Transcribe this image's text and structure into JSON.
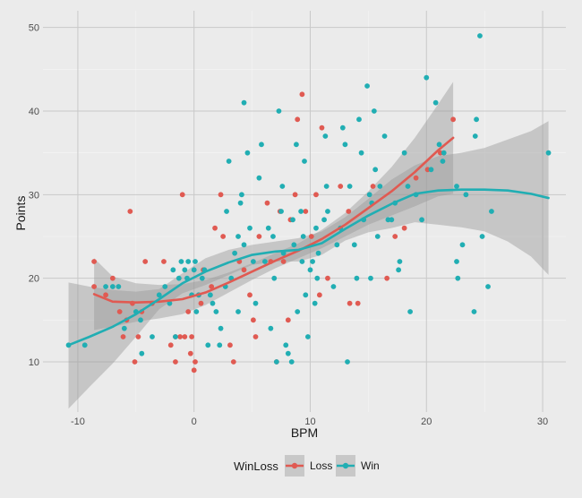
{
  "chart_data": {
    "type": "scatter",
    "title": "",
    "xlabel": "BPM",
    "ylabel": "Points",
    "xlim": [
      -13,
      32
    ],
    "ylim": [
      4,
      52
    ],
    "x_ticks": [
      -10,
      0,
      10,
      20,
      30
    ],
    "y_ticks": [
      10,
      20,
      30,
      40,
      50
    ],
    "grid": true,
    "legend": {
      "title": "WinLoss",
      "position": "bottom"
    },
    "series": [
      {
        "name": "Loss",
        "color": "#e05a52",
        "points": [
          [
            -8.6,
            22
          ],
          [
            -8.6,
            19
          ],
          [
            -7.6,
            18
          ],
          [
            -7,
            20
          ],
          [
            -6.4,
            16
          ],
          [
            -6.1,
            13
          ],
          [
            -5.8,
            15
          ],
          [
            -5.5,
            28
          ],
          [
            -5.3,
            17
          ],
          [
            -5.1,
            10
          ],
          [
            -4.8,
            13
          ],
          [
            -4.5,
            16
          ],
          [
            -4.2,
            22
          ],
          [
            -3.6,
            17
          ],
          [
            -2.6,
            22
          ],
          [
            -2,
            12
          ],
          [
            -1.6,
            13
          ],
          [
            -1.6,
            10
          ],
          [
            -1.2,
            13
          ],
          [
            -1,
            30
          ],
          [
            -0.8,
            13
          ],
          [
            -0.5,
            16
          ],
          [
            -0.3,
            11
          ],
          [
            -0.2,
            13
          ],
          [
            0,
            9
          ],
          [
            0.1,
            10
          ],
          [
            0.4,
            18
          ],
          [
            0.6,
            17
          ],
          [
            0.8,
            21
          ],
          [
            1.5,
            19
          ],
          [
            1.8,
            26
          ],
          [
            2.3,
            30
          ],
          [
            2.5,
            25
          ],
          [
            3.1,
            12
          ],
          [
            3.4,
            10
          ],
          [
            3.9,
            22
          ],
          [
            4.3,
            21
          ],
          [
            4.8,
            18
          ],
          [
            5.1,
            15
          ],
          [
            5.3,
            13
          ],
          [
            5.6,
            25
          ],
          [
            6.3,
            29
          ],
          [
            6.6,
            22
          ],
          [
            7.1,
            10
          ],
          [
            7.4,
            28
          ],
          [
            7.7,
            22
          ],
          [
            8.1,
            15
          ],
          [
            8.3,
            27
          ],
          [
            8.7,
            30
          ],
          [
            8.9,
            39
          ],
          [
            9.3,
            42
          ],
          [
            9.6,
            28
          ],
          [
            10.1,
            25
          ],
          [
            10.5,
            30
          ],
          [
            10.8,
            18
          ],
          [
            11,
            38
          ],
          [
            11.5,
            20
          ],
          [
            12.6,
            31
          ],
          [
            13.3,
            28
          ],
          [
            13.4,
            17
          ],
          [
            14.1,
            17
          ],
          [
            15.4,
            31
          ],
          [
            16.6,
            20
          ],
          [
            17.3,
            25
          ],
          [
            18.1,
            26
          ],
          [
            19.1,
            32
          ],
          [
            20.1,
            33
          ],
          [
            21.2,
            35
          ],
          [
            22.3,
            39
          ]
        ],
        "smooth": [
          [
            -8.6,
            18.1
          ],
          [
            -7,
            17.2
          ],
          [
            -5,
            17.1
          ],
          [
            -3,
            17.2
          ],
          [
            -1,
            17.5
          ],
          [
            1,
            18.3
          ],
          [
            3,
            19.5
          ],
          [
            5,
            20.8
          ],
          [
            7,
            22.1
          ],
          [
            9,
            23.3
          ],
          [
            11,
            24.7
          ],
          [
            13,
            26.4
          ],
          [
            15,
            28.4
          ],
          [
            17,
            30.4
          ],
          [
            19,
            32.7
          ],
          [
            21,
            35.3
          ],
          [
            22.3,
            36.8
          ]
        ],
        "band_upper": [
          [
            -8.6,
            22.4
          ],
          [
            -7,
            20.2
          ],
          [
            -5,
            19.4
          ],
          [
            -3,
            19.2
          ],
          [
            -1,
            19.3
          ],
          [
            1,
            19.8
          ],
          [
            3,
            20.7
          ],
          [
            5,
            21.8
          ],
          [
            7,
            23
          ],
          [
            9,
            24.2
          ],
          [
            11,
            25.8
          ],
          [
            13,
            27.8
          ],
          [
            15,
            30.4
          ],
          [
            17,
            33.3
          ],
          [
            19,
            36.8
          ],
          [
            21,
            40.8
          ],
          [
            22.3,
            43.5
          ]
        ],
        "band_lower": [
          [
            -8.6,
            13.8
          ],
          [
            -7,
            14.2
          ],
          [
            -5,
            14.8
          ],
          [
            -3,
            15.2
          ],
          [
            -1,
            15.7
          ],
          [
            1,
            16.8
          ],
          [
            3,
            18.3
          ],
          [
            5,
            19.8
          ],
          [
            7,
            21.2
          ],
          [
            9,
            22.4
          ],
          [
            11,
            23.6
          ],
          [
            13,
            25
          ],
          [
            15,
            26.4
          ],
          [
            17,
            27.5
          ],
          [
            19,
            28.6
          ],
          [
            21,
            29.8
          ],
          [
            22.3,
            30.1
          ]
        ]
      },
      {
        "name": "Win",
        "color": "#21aeb3",
        "points": [
          [
            -10.8,
            12
          ],
          [
            -9.4,
            12
          ],
          [
            -7.6,
            19
          ],
          [
            -7,
            19
          ],
          [
            -6.5,
            19
          ],
          [
            -6,
            14
          ],
          [
            -5,
            16
          ],
          [
            -4.6,
            15
          ],
          [
            -4.5,
            11
          ],
          [
            -3.6,
            13
          ],
          [
            -3,
            18
          ],
          [
            -2.5,
            19
          ],
          [
            -2.1,
            17
          ],
          [
            -1.8,
            21
          ],
          [
            -1.6,
            13
          ],
          [
            -1.3,
            20
          ],
          [
            -1.1,
            22
          ],
          [
            -0.8,
            21
          ],
          [
            -0.6,
            20
          ],
          [
            -0.5,
            22
          ],
          [
            -0.2,
            18
          ],
          [
            0,
            21
          ],
          [
            0.1,
            22
          ],
          [
            0.2,
            16
          ],
          [
            0.4,
            18
          ],
          [
            0.7,
            20
          ],
          [
            0.9,
            21
          ],
          [
            1.2,
            12
          ],
          [
            1.4,
            18
          ],
          [
            1.6,
            17
          ],
          [
            1.9,
            16
          ],
          [
            2.2,
            12
          ],
          [
            2.3,
            14
          ],
          [
            2.7,
            19
          ],
          [
            2.8,
            28
          ],
          [
            3,
            34
          ],
          [
            3.2,
            20
          ],
          [
            3.5,
            23
          ],
          [
            3.8,
            16
          ],
          [
            3.8,
            25
          ],
          [
            4,
            29
          ],
          [
            4.1,
            30
          ],
          [
            4.3,
            24
          ],
          [
            4.3,
            41
          ],
          [
            4.6,
            35
          ],
          [
            4.8,
            26
          ],
          [
            5.1,
            22
          ],
          [
            5.3,
            17
          ],
          [
            5.6,
            32
          ],
          [
            5.8,
            36
          ],
          [
            6.1,
            22
          ],
          [
            6.4,
            26
          ],
          [
            6.6,
            14
          ],
          [
            6.8,
            25
          ],
          [
            6.9,
            20
          ],
          [
            7.1,
            10
          ],
          [
            7.3,
            40
          ],
          [
            7.5,
            28
          ],
          [
            7.6,
            31
          ],
          [
            7.7,
            23
          ],
          [
            7.9,
            12
          ],
          [
            8.1,
            11
          ],
          [
            8.4,
            10
          ],
          [
            8.5,
            27
          ],
          [
            8.6,
            24
          ],
          [
            8.8,
            36
          ],
          [
            8.9,
            16
          ],
          [
            9.2,
            28
          ],
          [
            9.3,
            22
          ],
          [
            9.4,
            25
          ],
          [
            9.5,
            34
          ],
          [
            9.6,
            18
          ],
          [
            9.8,
            13
          ],
          [
            10,
            21
          ],
          [
            10.2,
            22
          ],
          [
            10.4,
            17
          ],
          [
            10.5,
            26
          ],
          [
            10.6,
            20
          ],
          [
            10.7,
            23
          ],
          [
            11.2,
            27
          ],
          [
            11.3,
            37
          ],
          [
            11.4,
            31
          ],
          [
            11.5,
            28
          ],
          [
            12,
            19
          ],
          [
            12.3,
            24
          ],
          [
            12.6,
            26
          ],
          [
            12.8,
            38
          ],
          [
            13,
            36
          ],
          [
            13.2,
            10
          ],
          [
            13.4,
            31
          ],
          [
            13.8,
            24
          ],
          [
            14,
            20
          ],
          [
            14.2,
            39
          ],
          [
            14.4,
            35
          ],
          [
            14.6,
            27
          ],
          [
            14.9,
            43
          ],
          [
            15.1,
            30
          ],
          [
            15.2,
            20
          ],
          [
            15.3,
            29
          ],
          [
            15.5,
            40
          ],
          [
            15.6,
            33
          ],
          [
            15.8,
            25
          ],
          [
            16,
            31
          ],
          [
            16.4,
            37
          ],
          [
            16.7,
            27
          ],
          [
            17,
            27
          ],
          [
            17.3,
            29
          ],
          [
            17.6,
            21
          ],
          [
            17.7,
            22
          ],
          [
            18.1,
            35
          ],
          [
            18.4,
            31
          ],
          [
            18.6,
            16
          ],
          [
            19.1,
            30
          ],
          [
            19.6,
            27
          ],
          [
            20,
            44
          ],
          [
            20.4,
            33
          ],
          [
            20.8,
            41
          ],
          [
            21.1,
            36
          ],
          [
            21.4,
            34
          ],
          [
            21.5,
            35
          ],
          [
            22.6,
            31
          ],
          [
            22.6,
            22
          ],
          [
            22.7,
            20
          ],
          [
            23.1,
            24
          ],
          [
            23.4,
            30
          ],
          [
            24.1,
            16
          ],
          [
            24.2,
            37
          ],
          [
            24.3,
            39
          ],
          [
            24.6,
            49
          ],
          [
            24.8,
            25
          ],
          [
            25.3,
            19
          ],
          [
            25.6,
            28
          ],
          [
            30.5,
            35
          ]
        ],
        "smooth": [
          [
            -10.8,
            12
          ],
          [
            -9,
            13
          ],
          [
            -7,
            14.2
          ],
          [
            -5,
            15.7
          ],
          [
            -3,
            17.5
          ],
          [
            -1,
            19.4
          ],
          [
            1,
            20.8
          ],
          [
            3,
            21.9
          ],
          [
            5,
            22.8
          ],
          [
            7,
            23.2
          ],
          [
            9,
            23.4
          ],
          [
            11,
            24.2
          ],
          [
            13,
            25.9
          ],
          [
            15,
            27.5
          ],
          [
            17,
            28.9
          ],
          [
            19,
            30.1
          ],
          [
            21,
            30.5
          ],
          [
            23,
            30.6
          ],
          [
            25,
            30.6
          ],
          [
            27,
            30.5
          ],
          [
            29,
            30.1
          ],
          [
            30.5,
            29.6
          ]
        ],
        "band_upper": [
          [
            -10.8,
            19.5
          ],
          [
            -9,
            19
          ],
          [
            -7,
            18.6
          ],
          [
            -5,
            18.4
          ],
          [
            -3,
            18.7
          ],
          [
            -1,
            20.6
          ],
          [
            1,
            22.4
          ],
          [
            3,
            23.4
          ],
          [
            5,
            24
          ],
          [
            7,
            24.4
          ],
          [
            9,
            24.8
          ],
          [
            11,
            25.6
          ],
          [
            13,
            27.3
          ],
          [
            15,
            29.5
          ],
          [
            17,
            31.8
          ],
          [
            19,
            33.5
          ],
          [
            21,
            34.6
          ],
          [
            23,
            35
          ],
          [
            25,
            35.6
          ],
          [
            27,
            36.6
          ],
          [
            29,
            37.6
          ],
          [
            30.5,
            38.8
          ]
        ],
        "band_lower": [
          [
            -10.8,
            4.4
          ],
          [
            -9,
            7
          ],
          [
            -7,
            9.8
          ],
          [
            -5,
            13
          ],
          [
            -3,
            16.3
          ],
          [
            -1,
            18.2
          ],
          [
            1,
            19.2
          ],
          [
            3,
            20.4
          ],
          [
            5,
            21.6
          ],
          [
            7,
            22
          ],
          [
            9,
            22
          ],
          [
            11,
            22.8
          ],
          [
            13,
            24.5
          ],
          [
            15,
            25.5
          ],
          [
            17,
            26
          ],
          [
            19,
            26.7
          ],
          [
            21,
            26.4
          ],
          [
            23,
            26.1
          ],
          [
            25,
            25.6
          ],
          [
            27,
            24.4
          ],
          [
            29,
            22.6
          ],
          [
            30.5,
            20.4
          ]
        ]
      }
    ]
  }
}
